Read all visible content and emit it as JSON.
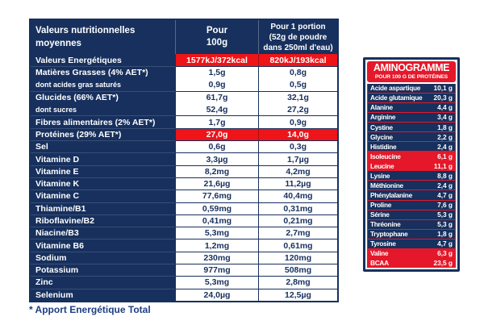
{
  "colors": {
    "navy": "#17305D",
    "red": "#EE1418",
    "panel_red": "#E4182A",
    "footer_blue": "#1E3C85"
  },
  "table": {
    "header": {
      "col1": "Valeurs nutritionnelles moyennes",
      "col2_lines": [
        "Pour",
        "100g"
      ],
      "col3_lines": [
        "Pour 1 portion",
        "(52g de poudre",
        "dans 250ml d'eau)"
      ]
    },
    "rows": [
      {
        "label": "Valeurs Energétiques",
        "per100": "1577kJ/372kcal",
        "portion": "820kJ/193kcal",
        "highlight": true
      },
      {
        "label": "Matières Grasses  (4% AET*)",
        "per100": "1,5g",
        "portion": "0,8g"
      },
      {
        "label": "dont acides gras saturés",
        "per100": "0,9g",
        "portion": "0,5g",
        "sub": true
      },
      {
        "label": "Glucides (66% AET*)",
        "per100": "61,7g",
        "portion": "32,1g"
      },
      {
        "label": "dont sucres",
        "per100": "52,4g",
        "portion": "27,2g",
        "sub": true
      },
      {
        "label": "Fibres alimentaires (2% AET*)",
        "per100": "1,7g",
        "portion": "0,9g"
      },
      {
        "label": "Protéines (29% AET*)",
        "per100": "27,0g",
        "portion": "14,0g",
        "highlight": true
      },
      {
        "label": "Sel",
        "per100": "0,6g",
        "portion": "0,3g"
      },
      {
        "label": "Vitamine D",
        "per100": "3,3µg",
        "portion": "1,7µg"
      },
      {
        "label": "Vitamine E",
        "per100": "8,2mg",
        "portion": "4,2mg"
      },
      {
        "label": "Vitamine K",
        "per100": "21,6µg",
        "portion": "11,2µg"
      },
      {
        "label": "Vitamine C",
        "per100": "77,6mg",
        "portion": "40,4mg"
      },
      {
        "label": "Thiamine/B1",
        "per100": "0,59mg",
        "portion": "0,31mg"
      },
      {
        "label": "Riboflavine/B2",
        "per100": "0,41mg",
        "portion": "0,21mg"
      },
      {
        "label": "Niacine/B3",
        "per100": "5,3mg",
        "portion": "2,7mg"
      },
      {
        "label": "Vitamine B6",
        "per100": "1,2mg",
        "portion": "0,61mg"
      },
      {
        "label": "Sodium",
        "per100": "230mg",
        "portion": "120mg"
      },
      {
        "label": "Potassium",
        "per100": "977mg",
        "portion": "508mg"
      },
      {
        "label": "Zinc",
        "per100": "5,3mg",
        "portion": "2,8mg"
      },
      {
        "label": "Selenium",
        "per100": "24,0µg",
        "portion": "12,5µg"
      }
    ],
    "footnote": "* Apport Energétique Total"
  },
  "aminogramme": {
    "title": "AMINOGRAMME",
    "subtitle": "POUR 100 G DE PROTÉINES",
    "rows": [
      {
        "label": "Acide aspartique",
        "value": "10,1 g"
      },
      {
        "label": "Acide glutamique",
        "value": "20,3 g"
      },
      {
        "label": "Alanine",
        "value": "4,4 g"
      },
      {
        "label": "Arginine",
        "value": "3,4 g"
      },
      {
        "label": "Cystine",
        "value": "1,8 g"
      },
      {
        "label": "Glycine",
        "value": "2,2 g"
      },
      {
        "label": "Histidine",
        "value": "2,4 g"
      },
      {
        "label": "Isoleucine",
        "value": "6,1 g",
        "highlight": true
      },
      {
        "label": "Leucine",
        "value": "11,1 g",
        "highlight": true
      },
      {
        "label": "Lysine",
        "value": "8,8 g"
      },
      {
        "label": "Méthionine",
        "value": "2,4 g"
      },
      {
        "label": "Phénylalanine",
        "value": "4,7 g"
      },
      {
        "label": "Proline",
        "value": "7,6 g"
      },
      {
        "label": "Sérine",
        "value": "5,3 g"
      },
      {
        "label": "Thréonine",
        "value": "5,3 g"
      },
      {
        "label": "Tryptophane",
        "value": "1,8 g"
      },
      {
        "label": "Tyrosine",
        "value": "4,7 g"
      },
      {
        "label": "Valine",
        "value": "6,3 g",
        "highlight": true
      },
      {
        "label": "BCAA",
        "value": "23,5 g",
        "highlight": true
      }
    ]
  }
}
